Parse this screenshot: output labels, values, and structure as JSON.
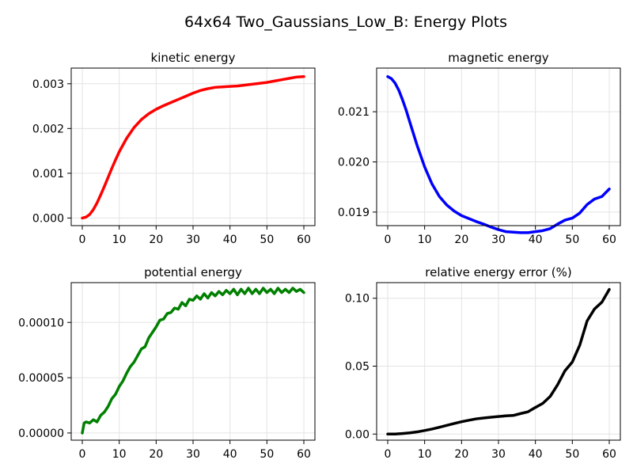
{
  "figure": {
    "title": "64x64 Two_Gaussians_Low_B: Energy Plots"
  },
  "chart_data": [
    {
      "id": "kinetic",
      "type": "line",
      "title": "kinetic energy",
      "color": "#ff0000",
      "xlim": [
        -3,
        63
      ],
      "ylim": [
        -0.00017,
        0.00335
      ],
      "xticks": [
        0,
        10,
        20,
        30,
        40,
        50,
        60
      ],
      "xtick_labels": [
        "0",
        "10",
        "20",
        "30",
        "40",
        "50",
        "60"
      ],
      "yticks": [
        0,
        0.001,
        0.002,
        0.003
      ],
      "ytick_labels": [
        "0.000",
        "0.001",
        "0.002",
        "0.003"
      ],
      "grid": true,
      "x": [
        0,
        1,
        2,
        3,
        4,
        5,
        6,
        7,
        8,
        9,
        10,
        12,
        14,
        16,
        18,
        20,
        22,
        24,
        26,
        28,
        30,
        32,
        34,
        36,
        38,
        40,
        42,
        44,
        46,
        48,
        50,
        52,
        54,
        56,
        58,
        60
      ],
      "y": [
        0.0,
        2e-05,
        8e-05,
        0.00019,
        0.00034,
        0.00052,
        0.00071,
        0.00091,
        0.00111,
        0.0013,
        0.00148,
        0.00178,
        0.00202,
        0.0022,
        0.00233,
        0.00243,
        0.00251,
        0.00258,
        0.00265,
        0.00272,
        0.00279,
        0.00285,
        0.00289,
        0.00292,
        0.00293,
        0.00294,
        0.00295,
        0.00297,
        0.00299,
        0.00301,
        0.00303,
        0.00306,
        0.00309,
        0.00312,
        0.00315,
        0.00316
      ]
    },
    {
      "id": "magnetic",
      "type": "line",
      "title": "magnetic energy",
      "color": "#0000ff",
      "xlim": [
        -3,
        63
      ],
      "ylim": [
        0.01873,
        0.02187
      ],
      "xticks": [
        0,
        10,
        20,
        30,
        40,
        50,
        60
      ],
      "xtick_labels": [
        "0",
        "10",
        "20",
        "30",
        "40",
        "50",
        "60"
      ],
      "yticks": [
        0.019,
        0.02,
        0.021
      ],
      "ytick_labels": [
        "0.019",
        "0.020",
        "0.021"
      ],
      "grid": true,
      "x": [
        0,
        1,
        2,
        3,
        4,
        5,
        6,
        8,
        10,
        12,
        14,
        16,
        18,
        20,
        22,
        24,
        26,
        28,
        30,
        32,
        34,
        36,
        38,
        40,
        42,
        44,
        46,
        48,
        50,
        52,
        54,
        56,
        58,
        60
      ],
      "y": [
        0.0217,
        0.02166,
        0.02157,
        0.02143,
        0.02124,
        0.02103,
        0.02079,
        0.02032,
        0.0199,
        0.01956,
        0.01931,
        0.01914,
        0.01902,
        0.01893,
        0.01887,
        0.01881,
        0.01876,
        0.0187,
        0.01865,
        0.01861,
        0.0186,
        0.01859,
        0.01859,
        0.01861,
        0.01863,
        0.01867,
        0.01876,
        0.01884,
        0.01888,
        0.01898,
        0.01915,
        0.01926,
        0.01931,
        0.01946
      ]
    },
    {
      "id": "potential",
      "type": "line",
      "title": "potential energy",
      "color": "#008000",
      "xlim": [
        -3,
        63
      ],
      "ylim": [
        -6.5e-06,
        0.000136
      ],
      "xticks": [
        0,
        10,
        20,
        30,
        40,
        50,
        60
      ],
      "xtick_labels": [
        "0",
        "10",
        "20",
        "30",
        "40",
        "50",
        "60"
      ],
      "yticks": [
        0,
        5e-05,
        0.0001
      ],
      "ytick_labels": [
        "0.00000",
        "0.00005",
        "0.00010"
      ],
      "grid": true,
      "x": [
        0,
        0.5,
        1,
        2,
        3,
        4,
        5,
        6,
        7,
        8,
        9,
        10,
        11,
        12,
        13,
        14,
        15,
        16,
        17,
        18,
        19,
        20,
        21,
        22,
        23,
        24,
        25,
        26,
        27,
        28,
        29,
        30,
        31,
        32,
        33,
        34,
        35,
        36,
        37,
        38,
        39,
        40,
        41,
        42,
        43,
        44,
        45,
        46,
        47,
        48,
        49,
        50,
        51,
        52,
        53,
        54,
        55,
        56,
        57,
        58,
        59,
        60
      ],
      "y": [
        0.0,
        9e-06,
        1e-05,
        9e-06,
        1.2e-05,
        1e-05,
        1.6e-05,
        1.9e-05,
        2.4e-05,
        3.1e-05,
        3.5e-05,
        4.2e-05,
        4.7e-05,
        5.4e-05,
        6e-05,
        6.4e-05,
        7e-05,
        7.6e-05,
        7.8e-05,
        8.6e-05,
        9.1e-05,
        9.6e-05,
        0.000102,
        0.000103,
        0.000108,
        0.000109,
        0.000113,
        0.000112,
        0.000118,
        0.000115,
        0.000121,
        0.00012,
        0.000124,
        0.000121,
        0.000126,
        0.000122,
        0.000127,
        0.000124,
        0.000128,
        0.000125,
        0.000129,
        0.000126,
        0.00013,
        0.000125,
        0.00013,
        0.000126,
        0.000131,
        0.000126,
        0.00013,
        0.000126,
        0.000131,
        0.000127,
        0.00013,
        0.000126,
        0.000131,
        0.000127,
        0.00013,
        0.000127,
        0.000131,
        0.000128,
        0.00013,
        0.000127
      ]
    },
    {
      "id": "error",
      "type": "line",
      "title": "relative energy error (%)",
      "color": "#000000",
      "xlim": [
        -3,
        63
      ],
      "ylim": [
        -0.0045,
        0.1115
      ],
      "xticks": [
        0,
        10,
        20,
        30,
        40,
        50,
        60
      ],
      "xtick_labels": [
        "0",
        "10",
        "20",
        "30",
        "40",
        "50",
        "60"
      ],
      "yticks": [
        0,
        0.05,
        0.1
      ],
      "ytick_labels": [
        "0.00",
        "0.05",
        "0.10"
      ],
      "grid": true,
      "x": [
        0,
        2,
        4,
        6,
        8,
        10,
        12,
        14,
        16,
        18,
        20,
        22,
        24,
        26,
        28,
        30,
        32,
        34,
        36,
        38,
        40,
        42,
        44,
        46,
        48,
        50,
        52,
        54,
        56,
        58,
        60
      ],
      "y": [
        0.0,
        0.0,
        0.0004,
        0.0009,
        0.0016,
        0.0026,
        0.0037,
        0.005,
        0.0064,
        0.0078,
        0.0091,
        0.0102,
        0.0112,
        0.0118,
        0.0124,
        0.0129,
        0.0134,
        0.0137,
        0.0151,
        0.0164,
        0.0196,
        0.0226,
        0.0277,
        0.0363,
        0.0466,
        0.0531,
        0.0654,
        0.0833,
        0.0921,
        0.0971,
        0.1065
      ]
    }
  ]
}
